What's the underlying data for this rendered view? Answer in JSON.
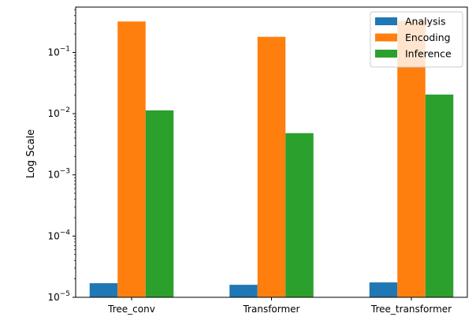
{
  "chart_data": {
    "type": "bar",
    "categories": [
      "Tree_conv",
      "Transformer",
      "Tree_transformer"
    ],
    "series": [
      {
        "name": "Analysis",
        "color": "#1f77b4",
        "values": [
          1.7e-05,
          1.6e-05,
          1.75e-05
        ]
      },
      {
        "name": "Encoding",
        "color": "#ff7f0e",
        "values": [
          0.32,
          0.18,
          0.33
        ]
      },
      {
        "name": "Inference",
        "color": "#2ca02c",
        "values": [
          0.0113,
          0.0048,
          0.0205
        ]
      }
    ],
    "title": "",
    "xlabel": "",
    "ylabel": "Log Scale",
    "yscale": "log",
    "ylim": [
      1e-05,
      0.55
    ],
    "ytick_labels": [
      {
        "value": 1e-05,
        "base": "10",
        "exp": "−5"
      },
      {
        "value": 0.0001,
        "base": "10",
        "exp": "−4"
      },
      {
        "value": 0.001,
        "base": "10",
        "exp": "−3"
      },
      {
        "value": 0.01,
        "base": "10",
        "exp": "−2"
      },
      {
        "value": 0.1,
        "base": "10",
        "exp": "−1"
      }
    ],
    "grid": false,
    "legend_position": "top-right"
  }
}
